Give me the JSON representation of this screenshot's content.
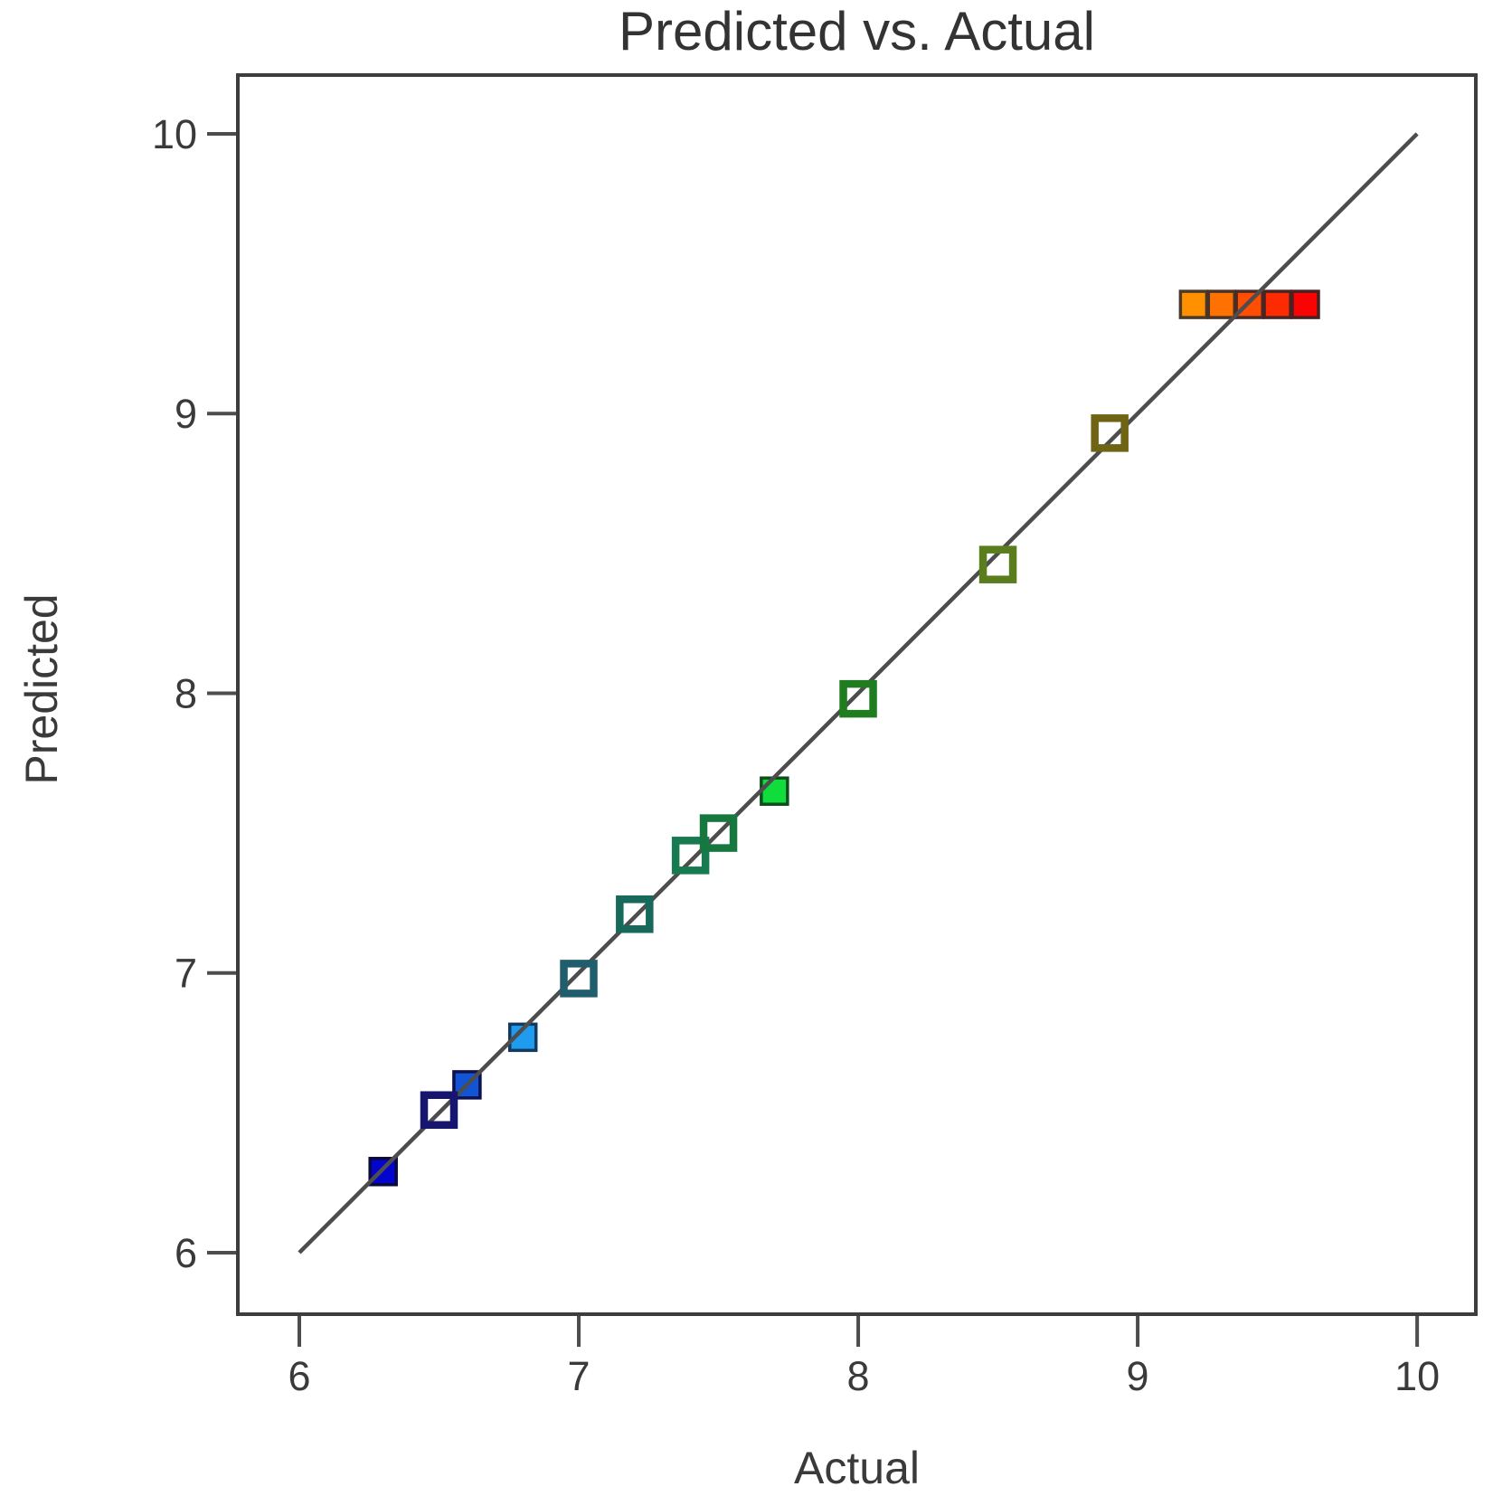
{
  "chart_data": {
    "type": "scatter",
    "title": "Predicted vs. Actual",
    "xlabel": "Actual",
    "ylabel": "Predicted",
    "xlim": [
      5.78,
      10.21
    ],
    "ylim": [
      5.78,
      10.21
    ],
    "x_ticks": [
      6,
      7,
      8,
      9,
      10
    ],
    "y_ticks": [
      6,
      7,
      8,
      9,
      10
    ],
    "grid": false,
    "legend": "none",
    "frame_color": "#3d3d3d",
    "tick_color": "#4d4d4d",
    "text_color": "#3a3a3a",
    "identity_line": {
      "x1": 6,
      "y1": 6,
      "x2": 10,
      "y2": 10,
      "color": "#4d4d4d"
    },
    "points": [
      {
        "actual": 6.3,
        "predicted": 6.29,
        "style": "filled",
        "color": "#0404cf",
        "border": "#0a0a3c"
      },
      {
        "actual": 6.5,
        "predicted": 6.51,
        "style": "open",
        "color": "#16166e"
      },
      {
        "actual": 6.6,
        "predicted": 6.6,
        "style": "filled",
        "color": "#1155d4",
        "border": "#0d1150"
      },
      {
        "actual": 6.8,
        "predicted": 6.77,
        "style": "filled",
        "color": "#1f9bef",
        "border": "#123a5e"
      },
      {
        "actual": 7.0,
        "predicted": 6.98,
        "style": "open",
        "color": "#205e6e"
      },
      {
        "actual": 7.2,
        "predicted": 7.21,
        "style": "open",
        "color": "#17695c"
      },
      {
        "actual": 7.4,
        "predicted": 7.42,
        "style": "open",
        "color": "#177a50"
      },
      {
        "actual": 7.5,
        "predicted": 7.5,
        "style": "open",
        "color": "#17783f"
      },
      {
        "actual": 7.7,
        "predicted": 7.65,
        "style": "filled",
        "color": "#10dc3c",
        "border": "#0b4f1e"
      },
      {
        "actual": 8.0,
        "predicted": 7.98,
        "style": "open",
        "color": "#1f7d1f"
      },
      {
        "actual": 8.5,
        "predicted": 8.46,
        "style": "open",
        "color": "#5a7d1e"
      },
      {
        "actual": 8.9,
        "predicted": 8.93,
        "style": "open",
        "color": "#6e6414"
      },
      {
        "actual": 9.2,
        "predicted": 9.39,
        "style": "filled",
        "color": "#ff9100",
        "border": "#4a3a28"
      },
      {
        "actual": 9.3,
        "predicted": 9.39,
        "style": "filled",
        "color": "#ff7100",
        "border": "#4a3226"
      },
      {
        "actual": 9.4,
        "predicted": 9.39,
        "style": "filled",
        "color": "#ff4d02",
        "border": "#4a2c24"
      },
      {
        "actual": 9.5,
        "predicted": 9.39,
        "style": "filled",
        "color": "#fe2a02",
        "border": "#4a2422"
      },
      {
        "actual": 9.6,
        "predicted": 9.39,
        "style": "filled",
        "color": "#fa0303",
        "border": "#4a2020"
      }
    ]
  }
}
